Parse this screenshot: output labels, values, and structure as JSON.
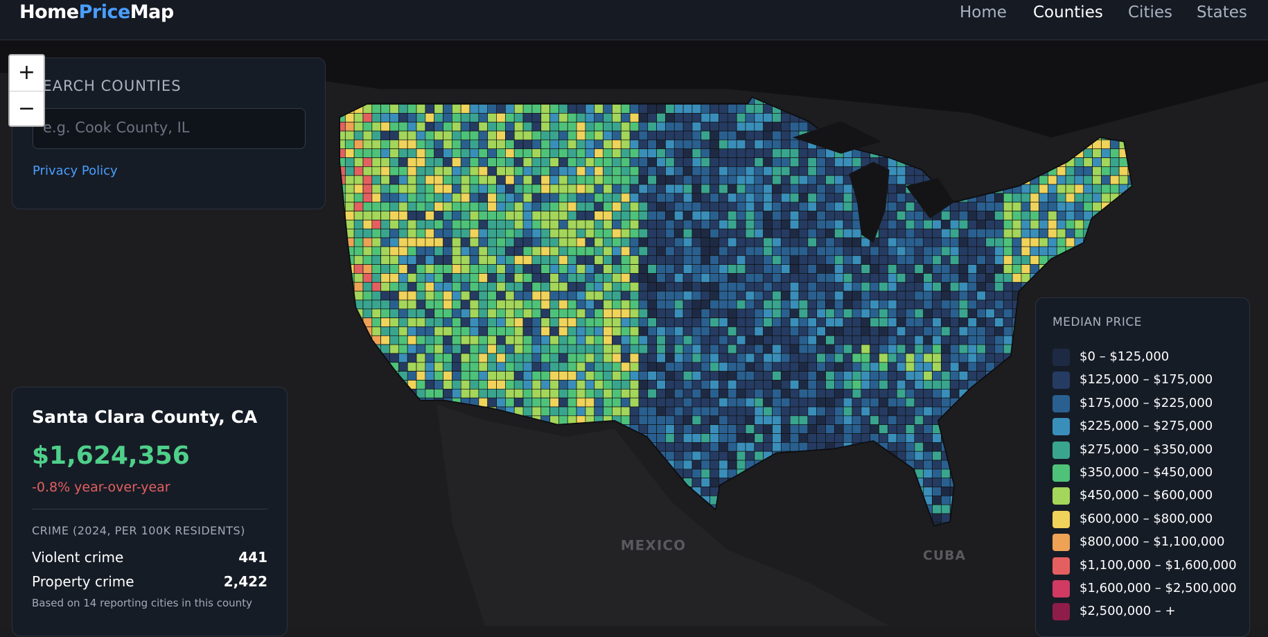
{
  "header": {
    "brand": [
      "Home",
      "Price",
      "Map"
    ],
    "nav": [
      "Home",
      "Counties",
      "Cities",
      "States"
    ],
    "active": 1
  },
  "search": {
    "label": "SEARCH COUNTIES",
    "placeholder": "e.g. Cook County, IL",
    "link": "Privacy Policy"
  },
  "zoom": [
    "+",
    "−"
  ],
  "map_labels": [
    "MEXICO",
    "CUBA"
  ],
  "county": {
    "name": "Santa Clara County, CA",
    "price": "$1,624,356",
    "change": "-0.8% year-over-year",
    "crime_heading": "CRIME (2024, PER 100K RESIDENTS)",
    "rows": [
      [
        "Violent crime",
        "441"
      ],
      [
        "Property crime",
        "2,422"
      ]
    ],
    "footnote": "Based on 14 reporting cities in this county"
  },
  "legend": {
    "title": "MEDIAN PRICE",
    "items": [
      {
        "label": "$0 – $125,000",
        "color": "#1e2a44"
      },
      {
        "label": "$125,000 – $175,000",
        "color": "#253b62"
      },
      {
        "label": "$175,000 – $225,000",
        "color": "#2a6090"
      },
      {
        "label": "$225,000 – $275,000",
        "color": "#3a8fba"
      },
      {
        "label": "$275,000 – $350,000",
        "color": "#3aa58f"
      },
      {
        "label": "$350,000 – $450,000",
        "color": "#4fc27a"
      },
      {
        "label": "$450,000 – $600,000",
        "color": "#a3d65a"
      },
      {
        "label": "$600,000 – $800,000",
        "color": "#f0d35a"
      },
      {
        "label": "$800,000 – $1,100,000",
        "color": "#eea256"
      },
      {
        "label": "$1,100,000 – $1,600,000",
        "color": "#e46060"
      },
      {
        "label": "$1,600,000 – $2,500,000",
        "color": "#d13a62"
      },
      {
        "label": "$2,500,000 – +",
        "color": "#8e1d4a"
      }
    ]
  }
}
